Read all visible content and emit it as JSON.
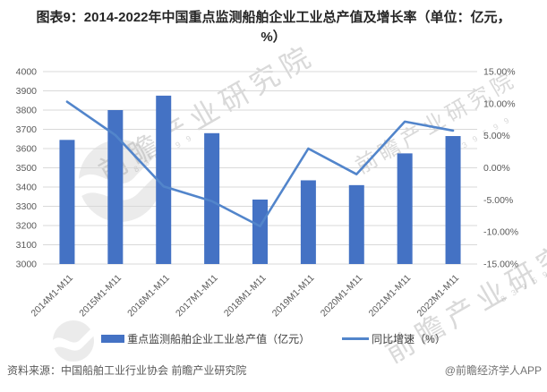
{
  "title": "图表9：2014-2022年中国重点监测船舶企业工业总产值及增长率（单位：亿元，%）",
  "chart_data": {
    "type": "combo-bar-line",
    "categories": [
      "2014M1-M11",
      "2015M1-M11",
      "2016M1-M11",
      "2017M1-M11",
      "2018M1-M11",
      "2019M1-M11",
      "2020M1-M11",
      "2021M1-M11",
      "2022M1-M11"
    ],
    "series": [
      {
        "name": "重点监测船舶企业工业总产值（亿元）",
        "type": "bar",
        "axis": "left",
        "values": [
          3645,
          3800,
          3875,
          3680,
          3335,
          3435,
          3410,
          3575,
          3665
        ]
      },
      {
        "name": "同比增速（%）",
        "type": "line",
        "axis": "right",
        "values": [
          10.3,
          5.1,
          -2.9,
          -5.2,
          -9.1,
          3.0,
          -1.0,
          7.2,
          5.8
        ]
      }
    ],
    "left_axis": {
      "min": 3000,
      "max": 4000,
      "step": 100
    },
    "right_axis": {
      "min": -15,
      "max": 15,
      "step": 5,
      "decimals": 2,
      "suffix": "%"
    },
    "grid": true,
    "legend_position": "bottom",
    "colors": {
      "bar": "#4472C4",
      "line": "#5285CB",
      "gridline": "#D9D9D9",
      "tick_text": "#595959",
      "x_label_text": "#595959"
    }
  },
  "footer": {
    "source": "资料来源：中国船舶工业行业协会 前瞻产业研究院",
    "credit": "@前瞻经济学人APP"
  },
  "watermark": {
    "text": "前瞻产业研究院",
    "code": "8 3 9 5 9 9"
  }
}
